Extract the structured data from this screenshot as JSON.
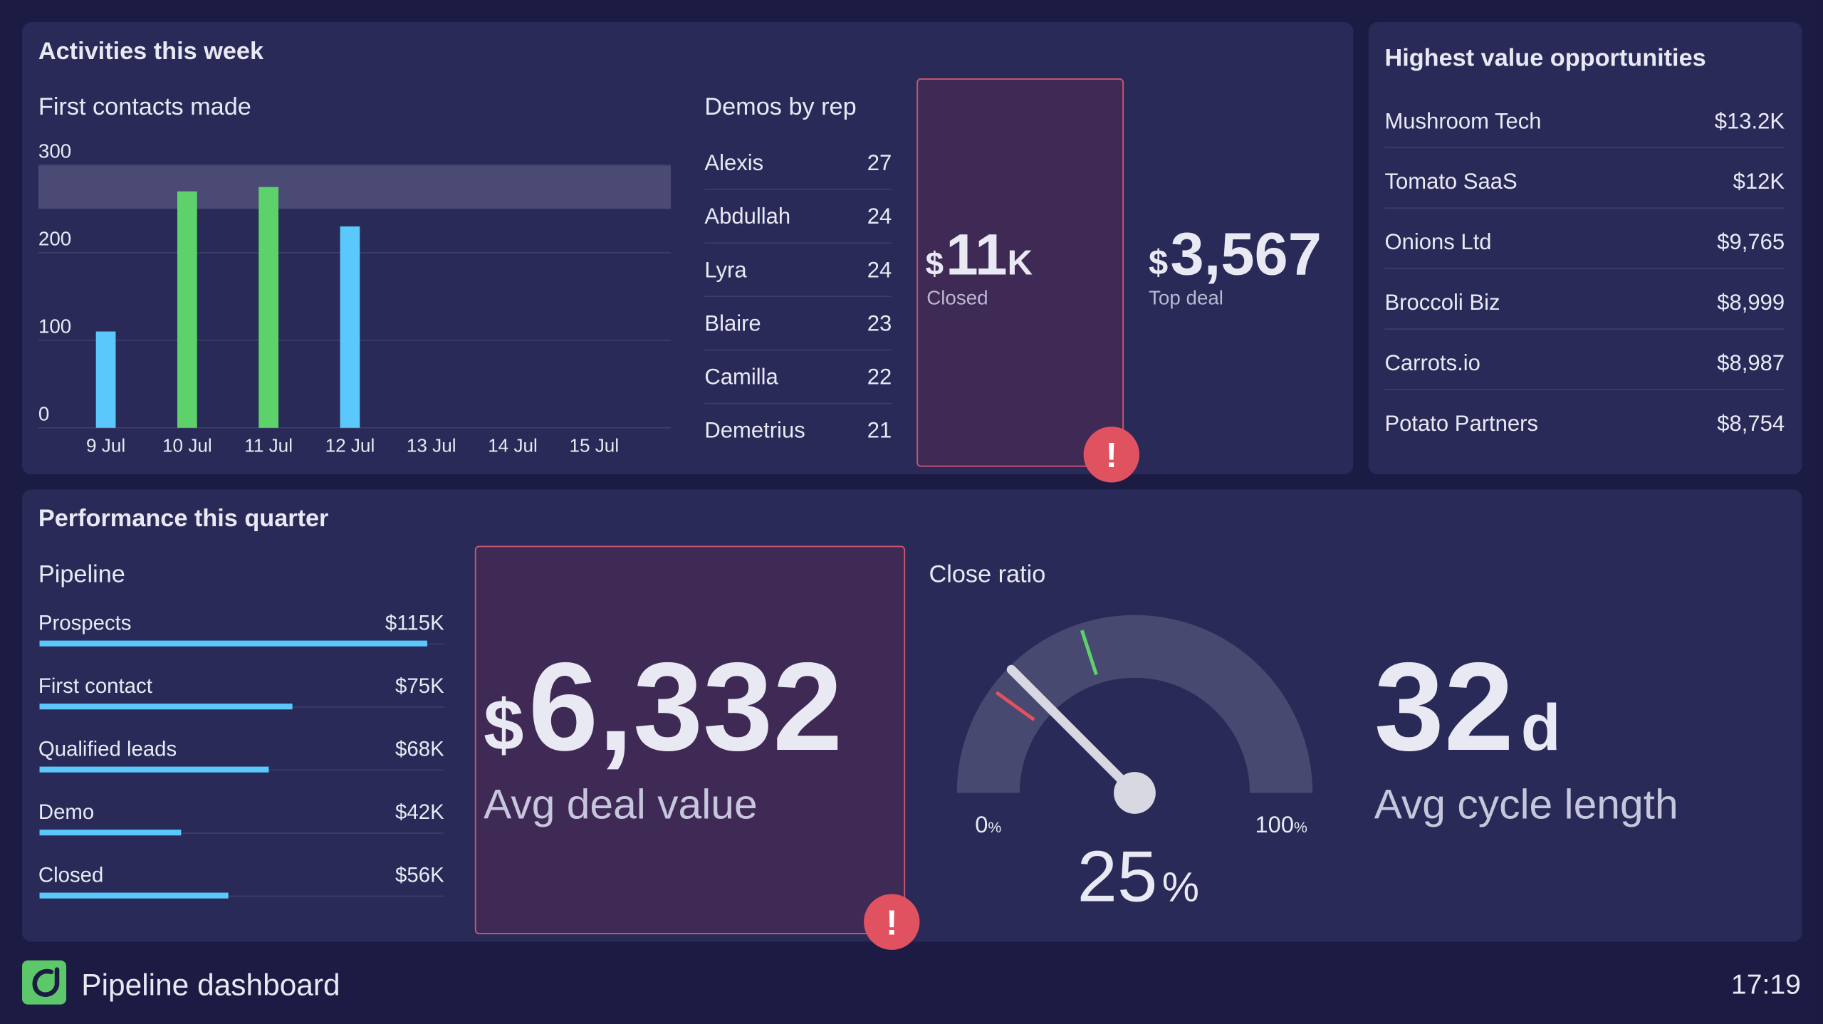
{
  "activities": {
    "title": "Activities this week",
    "first_contacts": {
      "type": "bar",
      "title": "First contacts made",
      "categories": [
        "9 Jul",
        "10 Jul",
        "11 Jul",
        "12 Jul",
        "13 Jul",
        "14 Jul",
        "15 Jul"
      ],
      "values": [
        110,
        270,
        275,
        230,
        null,
        null,
        null
      ],
      "color": "#5ac8fa",
      "target_color": "#5dd16a",
      "target_band": [
        250,
        300
      ],
      "ylim": [
        0,
        300
      ],
      "yticks": [
        0,
        100,
        200,
        300
      ],
      "grid": true
    },
    "demos_by_rep": {
      "title": "Demos by rep",
      "rows": [
        [
          "Alexis",
          27
        ],
        [
          "Abdullah",
          24
        ],
        [
          "Lyra",
          24
        ],
        [
          "Blaire",
          23
        ],
        [
          "Camilla",
          22
        ],
        [
          "Demetrius",
          21
        ]
      ]
    },
    "closed": {
      "currency": "$",
      "value": "11",
      "unit": "K",
      "label": "Closed",
      "alert": "!"
    },
    "top_deal": {
      "currency": "$",
      "value": "3,567",
      "label": "Top deal"
    }
  },
  "opportunities": {
    "title": "Highest value opportunities",
    "rows": [
      [
        "Mushroom Tech",
        "$13.2K"
      ],
      [
        "Tomato SaaS",
        "$12K"
      ],
      [
        "Onions Ltd",
        "$9,765"
      ],
      [
        "Broccoli Biz",
        "$8,999"
      ],
      [
        "Carrots.io",
        "$8,987"
      ],
      [
        "Potato Partners",
        "$8,754"
      ]
    ]
  },
  "performance": {
    "title": "Performance this quarter",
    "pipeline": {
      "type": "bar",
      "orientation": "horizontal",
      "title": "Pipeline",
      "categories": [
        "Prospects",
        "First contact",
        "Qualified leads",
        "Demo",
        "Closed"
      ],
      "values": [
        115,
        75,
        68,
        42,
        56
      ],
      "value_labels": [
        "$115K",
        "$75K",
        "$68K",
        "$42K",
        "$56K"
      ],
      "color": "#5ac8fa",
      "xlim": [
        0,
        120
      ]
    },
    "avg_deal": {
      "currency": "$",
      "value": "6,332",
      "label": "Avg deal value",
      "alert": "!"
    },
    "close_ratio": {
      "type": "gauge",
      "title": "Close ratio",
      "value": 25,
      "unit": "%",
      "xlim": [
        0,
        100
      ],
      "xticks": [
        0,
        100
      ],
      "markers": [
        {
          "value": 20,
          "color": "#e0525f"
        },
        {
          "value": 40,
          "color": "#5dd16a"
        }
      ]
    },
    "cycle": {
      "value": "32",
      "unit": "d",
      "label": "Avg cycle length"
    }
  },
  "footer": {
    "title": "Pipeline dashboard",
    "time": "17:19"
  }
}
